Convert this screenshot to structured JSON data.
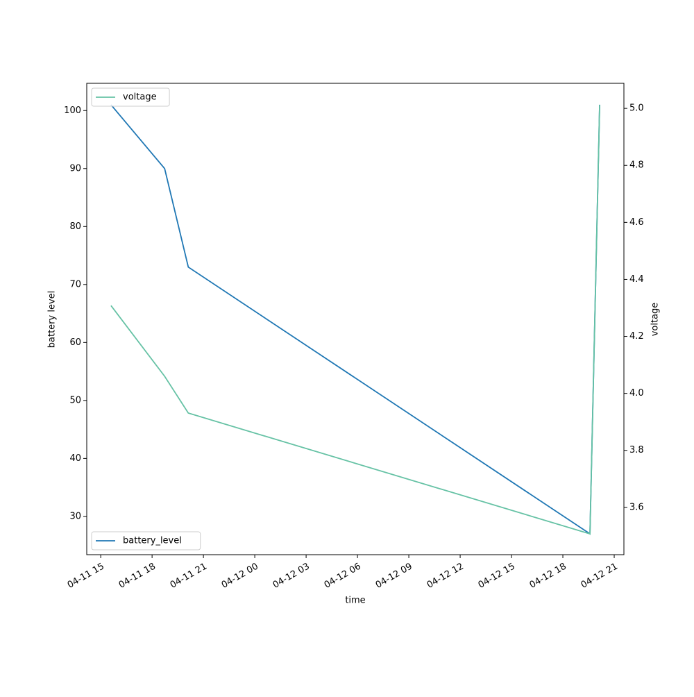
{
  "chart_data": {
    "type": "line",
    "xlabel": "time",
    "ylabel": "battery level",
    "y2label": "voltage",
    "x": [
      "04-11 15:36",
      "04-11 18:44",
      "04-11 20:07",
      "04-12 19:35",
      "04-12 20:09"
    ],
    "xlim": [
      "04-11 14:11",
      "04-12 21:34"
    ],
    "xticks": [
      "04-11 15",
      "04-11 18",
      "04-11 21",
      "04-12 00",
      "04-12 03",
      "04-12 06",
      "04-12 09",
      "04-12 12",
      "04-12 15",
      "04-12 18",
      "04-12 21"
    ],
    "ylim": [
      23.4,
      104.7
    ],
    "yticks": [
      30,
      40,
      50,
      60,
      70,
      80,
      90,
      100
    ],
    "y2lim": [
      3.434,
      5.088
    ],
    "y2ticks": [
      {
        "value": 3.6,
        "label": "3.6"
      },
      {
        "value": 3.8,
        "label": "3.8"
      },
      {
        "value": 4.0,
        "label": "4.0"
      },
      {
        "value": 4.2,
        "label": "4.2"
      },
      {
        "value": 4.4,
        "label": "4.4"
      },
      {
        "value": 4.6,
        "label": "4.6"
      },
      {
        "value": 4.8,
        "label": "4.8"
      },
      {
        "value": 5.0,
        "label": "5.0"
      }
    ],
    "series": [
      {
        "name": "battery_level",
        "color": "#1f77b4",
        "values": [
          101,
          90,
          73,
          27,
          101
        ],
        "legend": "lower left"
      },
      {
        "name": "voltage",
        "color": "#66c2a5",
        "axis": "y2",
        "values": [
          4.308,
          4.06,
          3.931,
          3.507,
          5.012
        ],
        "legend": "upper left"
      }
    ]
  }
}
